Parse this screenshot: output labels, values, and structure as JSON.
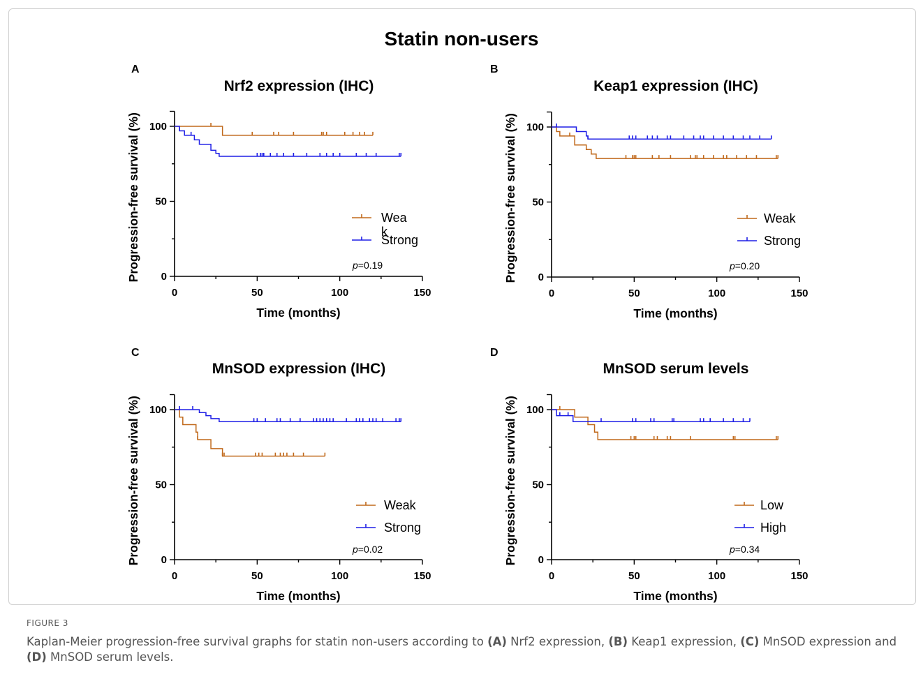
{
  "figure": {
    "main_title": "Statin non-users",
    "caption_label": "FIGURE 3",
    "caption_parts": [
      {
        "text": "Kaplan-Meier progression-free survival graphs for statin non-users according to ",
        "bold": false
      },
      {
        "text": "(A)",
        "bold": true
      },
      {
        "text": " Nrf2 expression, ",
        "bold": false
      },
      {
        "text": "(B)",
        "bold": true
      },
      {
        "text": " Keap1 expression, ",
        "bold": false
      },
      {
        "text": "(C)",
        "bold": true
      },
      {
        "text": " MnSOD expression and ",
        "bold": false
      },
      {
        "text": "(D)",
        "bold": true
      },
      {
        "text": " MnSOD serum levels.",
        "bold": false
      }
    ]
  },
  "colors": {
    "orange": "#C0681A",
    "blue": "#1F1FE6",
    "axis": "#000000"
  },
  "chart_data": [
    {
      "panel": "A",
      "type": "line",
      "title": "Nrf2 expression (IHC)",
      "xlabel": "Time (months)",
      "ylabel": "Progression-free survival (%)",
      "xlim": [
        0,
        150
      ],
      "ylim": [
        0,
        110
      ],
      "xticks": [
        0,
        50,
        100,
        150
      ],
      "yticks": [
        0,
        50,
        100
      ],
      "p_value": "0.19",
      "series": [
        {
          "name": "Wea\nk",
          "color": "#C0681A",
          "steps": [
            [
              0,
              100
            ],
            [
              29,
              94
            ]
          ],
          "end": 120,
          "censors": [
            22,
            47,
            60,
            63,
            72,
            89,
            90,
            92,
            103,
            108,
            112,
            115,
            120
          ]
        },
        {
          "name": "Strong",
          "color": "#1F1FE6",
          "steps": [
            [
              0,
              100
            ],
            [
              3,
              97
            ],
            [
              6,
              94
            ],
            [
              12,
              91
            ],
            [
              15,
              88
            ],
            [
              22,
              84
            ],
            [
              25,
              82
            ],
            [
              27,
              80
            ]
          ],
          "end": 137,
          "censors": [
            3,
            10,
            50,
            52,
            53,
            54,
            58,
            62,
            66,
            72,
            80,
            88,
            92,
            96,
            100,
            110,
            116,
            122,
            136,
            137
          ]
        }
      ]
    },
    {
      "panel": "B",
      "type": "line",
      "title": "Keap1 expression (IHC)",
      "xlabel": "Time (months)",
      "ylabel": "Progression-free survival (%)",
      "xlim": [
        0,
        150
      ],
      "ylim": [
        0,
        110
      ],
      "xticks": [
        0,
        50,
        100,
        150
      ],
      "yticks": [
        0,
        50,
        100
      ],
      "p_value": "0.20",
      "series": [
        {
          "name": "Weak",
          "color": "#C0681A",
          "steps": [
            [
              0,
              100
            ],
            [
              3,
              97
            ],
            [
              5,
              94
            ],
            [
              14,
              88
            ],
            [
              21,
              85
            ],
            [
              24,
              82
            ],
            [
              27,
              79
            ]
          ],
          "end": 137,
          "censors": [
            11,
            45,
            49,
            50,
            51,
            61,
            65,
            72,
            84,
            87,
            88,
            92,
            98,
            104,
            106,
            112,
            118,
            124,
            136,
            137
          ]
        },
        {
          "name": "Strong",
          "color": "#1F1FE6",
          "steps": [
            [
              0,
              100
            ],
            [
              15,
              97
            ],
            [
              21,
              94
            ],
            [
              22,
              92
            ]
          ],
          "end": 133,
          "censors": [
            3,
            22,
            47,
            49,
            51,
            58,
            61,
            64,
            70,
            72,
            80,
            86,
            90,
            92,
            98,
            104,
            110,
            116,
            120,
            126,
            133
          ]
        }
      ]
    },
    {
      "panel": "C",
      "type": "line",
      "title": "MnSOD expression (IHC)",
      "xlabel": "Time (months)",
      "ylabel": "Progression-free survival (%)",
      "xlim": [
        0,
        150
      ],
      "ylim": [
        0,
        110
      ],
      "xticks": [
        0,
        50,
        100,
        150
      ],
      "yticks": [
        0,
        50,
        100
      ],
      "p_value": "0.02",
      "series": [
        {
          "name": "Weak",
          "color": "#C0681A",
          "steps": [
            [
              0,
              100
            ],
            [
              3,
              95
            ],
            [
              5,
              90
            ],
            [
              13,
              85
            ],
            [
              14,
              80
            ],
            [
              22,
              74
            ],
            [
              29,
              69
            ]
          ],
          "end": 91,
          "censors": [
            14,
            29,
            30,
            49,
            51,
            53,
            61,
            64,
            66,
            68,
            72,
            78,
            91
          ]
        },
        {
          "name": "Strong",
          "color": "#1F1FE6",
          "steps": [
            [
              0,
              100
            ],
            [
              15,
              98
            ],
            [
              19,
              96
            ],
            [
              22,
              94
            ],
            [
              27,
              92
            ]
          ],
          "end": 137,
          "censors": [
            3,
            11,
            48,
            50,
            55,
            62,
            64,
            70,
            76,
            84,
            86,
            88,
            90,
            92,
            94,
            96,
            104,
            110,
            112,
            114,
            118,
            120,
            122,
            126,
            134,
            136,
            137
          ]
        }
      ]
    },
    {
      "panel": "D",
      "type": "line",
      "title": "MnSOD serum levels",
      "xlabel": "Time (months)",
      "ylabel": "Progression-free survival (%)",
      "xlim": [
        0,
        150
      ],
      "ylim": [
        0,
        110
      ],
      "xticks": [
        0,
        50,
        100,
        150
      ],
      "yticks": [
        0,
        50,
        100
      ],
      "p_value": "0.34",
      "series": [
        {
          "name": "Low",
          "color": "#C0681A",
          "steps": [
            [
              0,
              100
            ],
            [
              14,
              95
            ],
            [
              22,
              90
            ],
            [
              26,
              85
            ],
            [
              28,
              80
            ]
          ],
          "end": 137,
          "censors": [
            5,
            48,
            50,
            51,
            62,
            64,
            70,
            72,
            84,
            110,
            111,
            136,
            137
          ]
        },
        {
          "name": "High",
          "color": "#1F1FE6",
          "steps": [
            [
              0,
              100
            ],
            [
              3,
              96
            ],
            [
              13,
              92
            ]
          ],
          "end": 120,
          "censors": [
            5,
            10,
            30,
            49,
            51,
            60,
            62,
            73,
            74,
            90,
            92,
            96,
            104,
            110,
            116,
            120
          ]
        }
      ]
    }
  ]
}
